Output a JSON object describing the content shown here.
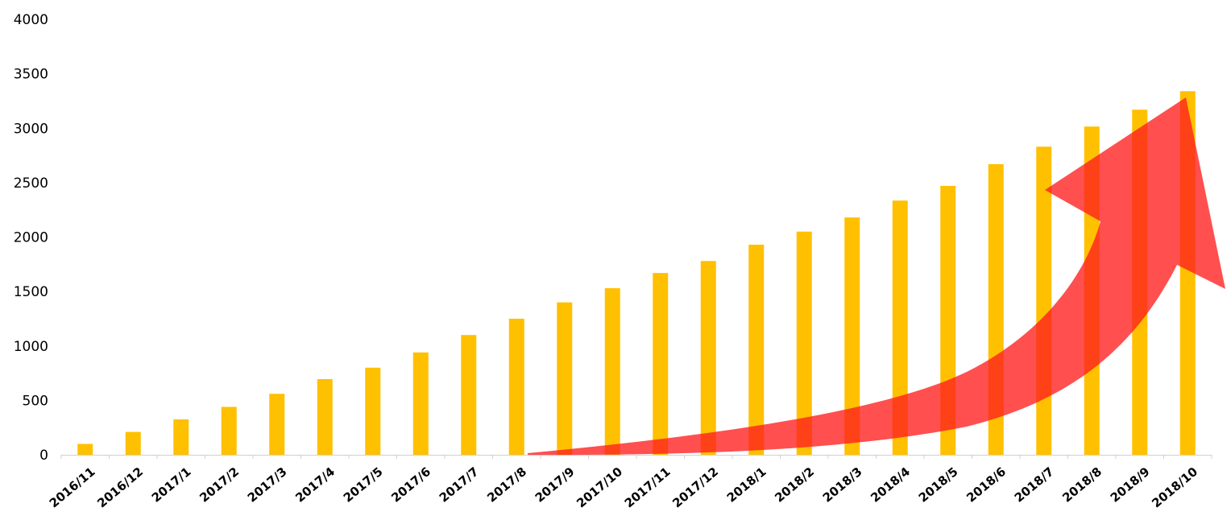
{
  "chart_data": {
    "type": "bar",
    "title": "",
    "xlabel": "",
    "ylabel": "",
    "ylim": [
      0,
      4000
    ],
    "yticks": [
      0,
      500,
      1000,
      1500,
      2000,
      2500,
      3000,
      3500,
      4000
    ],
    "grid": false,
    "legend": "none",
    "categories": [
      "2016/11",
      "2016/12",
      "2017/1",
      "2017/2",
      "2017/3",
      "2017/4",
      "2017/5",
      "2017/6",
      "2017/7",
      "2017/8",
      "2017/9",
      "2017/10",
      "2017/11",
      "2017/12",
      "2018/1",
      "2018/2",
      "2018/3",
      "2018/4",
      "2018/5",
      "2018/6",
      "2018/7",
      "2018/8",
      "2018/9",
      "2018/10"
    ],
    "values": [
      100,
      210,
      325,
      440,
      560,
      695,
      800,
      940,
      1100,
      1250,
      1400,
      1530,
      1670,
      1780,
      1930,
      2050,
      2180,
      2335,
      2470,
      2670,
      2830,
      3015,
      3170,
      3340
    ],
    "colors": {
      "bar": "#FFC000",
      "arrow": "#FF1E1E"
    },
    "annotations": [
      "upward-trend-arrow"
    ]
  }
}
